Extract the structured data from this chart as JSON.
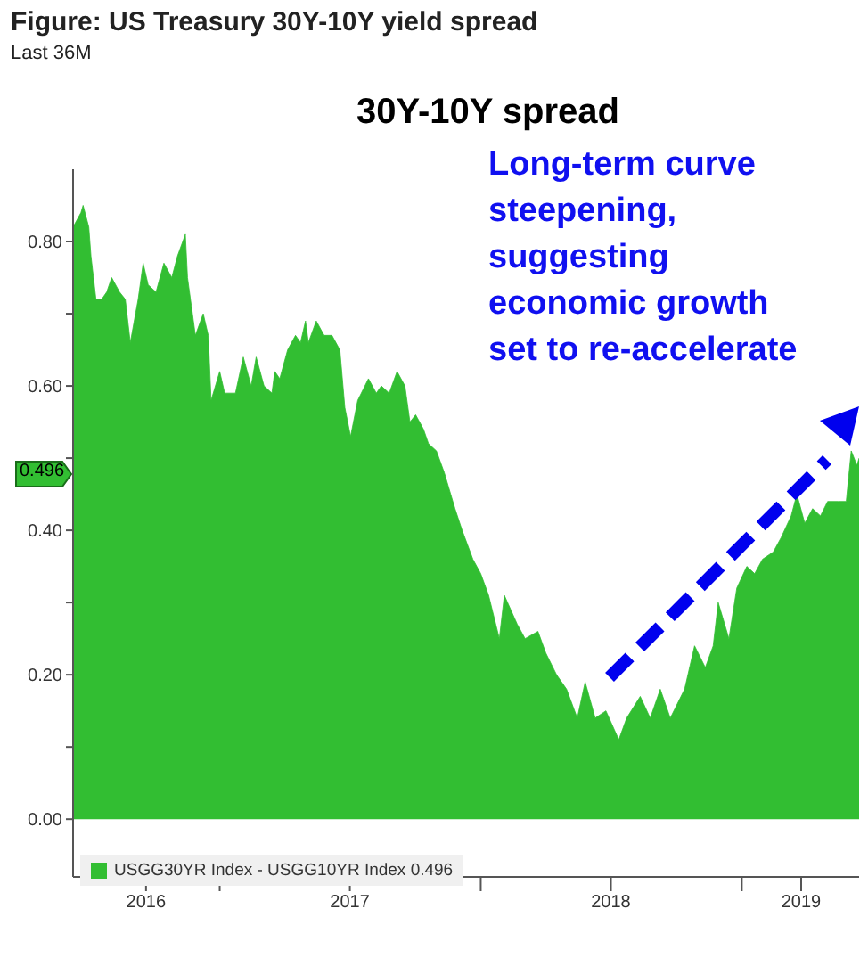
{
  "chart_data": {
    "type": "area",
    "title": "Figure: US Treasury 30Y-10Y yield spread",
    "subtitle": "Last 36M",
    "annotations": [
      "30Y-10Y spread",
      "Long-term curve\nsteepening,\nsuggesting\neconomic growth\nset to re-accelerate",
      {
        "text": "0.496",
        "y": 0.496
      }
    ],
    "x": [
      "2016-06-10",
      "2016-06-21",
      "2016-06-24",
      "2016-07-02",
      "2016-07-05",
      "2016-07-12",
      "2016-07-20",
      "2016-07-27",
      "2016-08-03",
      "2016-08-14",
      "2016-08-22",
      "2016-08-29",
      "2016-09-09",
      "2016-09-16",
      "2016-09-23",
      "2016-10-04",
      "2016-10-15",
      "2016-10-26",
      "2016-11-03",
      "2016-11-14",
      "2016-11-17",
      "2016-11-28",
      "2016-12-09",
      "2016-12-16",
      "2016-12-20",
      "2017-01-01",
      "2017-01-08",
      "2017-01-23",
      "2017-02-03",
      "2017-02-14",
      "2017-02-21",
      "2017-03-04",
      "2017-03-15",
      "2017-03-19",
      "2017-03-26",
      "2017-04-06",
      "2017-04-17",
      "2017-04-24",
      "2017-05-01",
      "2017-05-05",
      "2017-05-16",
      "2017-05-27",
      "2017-06-07",
      "2017-06-18",
      "2017-06-25",
      "2017-07-03",
      "2017-07-13",
      "2017-07-28",
      "2017-08-08",
      "2017-08-15",
      "2017-08-26",
      "2017-09-06",
      "2017-09-17",
      "2017-09-24",
      "2017-10-02",
      "2017-10-13",
      "2017-10-20",
      "2017-10-31",
      "2017-11-11",
      "2017-11-26",
      "2017-12-06",
      "2017-12-21",
      "2018-01-01",
      "2018-01-12",
      "2018-01-27",
      "2018-02-03",
      "2018-02-21",
      "2018-03-04",
      "2018-03-22",
      "2018-04-02",
      "2018-04-17",
      "2018-05-01",
      "2018-05-16",
      "2018-05-27",
      "2018-06-10",
      "2018-06-25",
      "2018-07-13",
      "2018-07-24",
      "2018-08-12",
      "2018-08-26",
      "2018-09-09",
      "2018-09-23",
      "2018-10-13",
      "2018-10-27",
      "2018-11-11",
      "2018-11-22",
      "2018-11-29",
      "2018-12-14",
      "2018-12-25",
      "2019-01-08",
      "2019-01-19",
      "2019-01-30",
      "2019-02-14",
      "2019-02-25",
      "2019-03-11",
      "2019-03-19",
      "2019-03-30",
      "2019-04-10",
      "2019-04-21",
      "2019-05-01",
      "2019-05-16",
      "2019-05-27",
      "2019-06-03",
      "2019-06-11",
      "2019-06-14"
    ],
    "series": [
      {
        "name": "USGG30YR Index - USGG10YR Index 0.496",
        "color": "#32be32",
        "values": [
          0.82,
          0.84,
          0.85,
          0.82,
          0.78,
          0.72,
          0.72,
          0.73,
          0.75,
          0.73,
          0.72,
          0.66,
          0.72,
          0.77,
          0.74,
          0.73,
          0.77,
          0.75,
          0.78,
          0.81,
          0.75,
          0.67,
          0.7,
          0.67,
          0.58,
          0.62,
          0.59,
          0.59,
          0.64,
          0.6,
          0.64,
          0.6,
          0.59,
          0.62,
          0.61,
          0.65,
          0.67,
          0.66,
          0.69,
          0.66,
          0.69,
          0.67,
          0.67,
          0.65,
          0.57,
          0.53,
          0.58,
          0.61,
          0.59,
          0.6,
          0.59,
          0.62,
          0.6,
          0.55,
          0.56,
          0.54,
          0.52,
          0.51,
          0.48,
          0.43,
          0.4,
          0.36,
          0.34,
          0.31,
          0.25,
          0.31,
          0.27,
          0.25,
          0.26,
          0.23,
          0.2,
          0.18,
          0.14,
          0.19,
          0.14,
          0.15,
          0.11,
          0.14,
          0.17,
          0.14,
          0.18,
          0.14,
          0.18,
          0.24,
          0.21,
          0.24,
          0.3,
          0.25,
          0.32,
          0.35,
          0.34,
          0.36,
          0.37,
          0.39,
          0.42,
          0.45,
          0.41,
          0.43,
          0.42,
          0.44,
          0.44,
          0.44,
          0.51,
          0.49,
          0.5
        ]
      }
    ],
    "xlim": [
      "2016-06-10",
      "2019-06-14"
    ],
    "xticks": [
      {
        "value": "2016-09-20",
        "label": "2016"
      },
      {
        "value": "2017-01-01",
        "label": null
      },
      {
        "value": "2017-07-02",
        "label": "2017"
      },
      {
        "value": "2018-01-01",
        "label": null
      },
      {
        "value": "2018-07-02",
        "label": "2018"
      },
      {
        "value": "2019-01-01",
        "label": null
      },
      {
        "value": "2019-03-25",
        "label": "2019"
      }
    ],
    "ylim": [
      -0.08,
      0.9
    ],
    "yticks": [
      {
        "value": 0,
        "label": "0.00"
      },
      {
        "value": 0.1,
        "label": null
      },
      {
        "value": 0.2,
        "label": "0.20"
      },
      {
        "value": 0.3,
        "label": null
      },
      {
        "value": 0.4,
        "label": "0.40"
      },
      {
        "value": 0.5,
        "label": null
      },
      {
        "value": 0.6,
        "label": "0.60"
      },
      {
        "value": 0.7,
        "label": null
      },
      {
        "value": 0.8,
        "label": "0.80"
      }
    ],
    "grid": false,
    "legend": "bottom left"
  }
}
